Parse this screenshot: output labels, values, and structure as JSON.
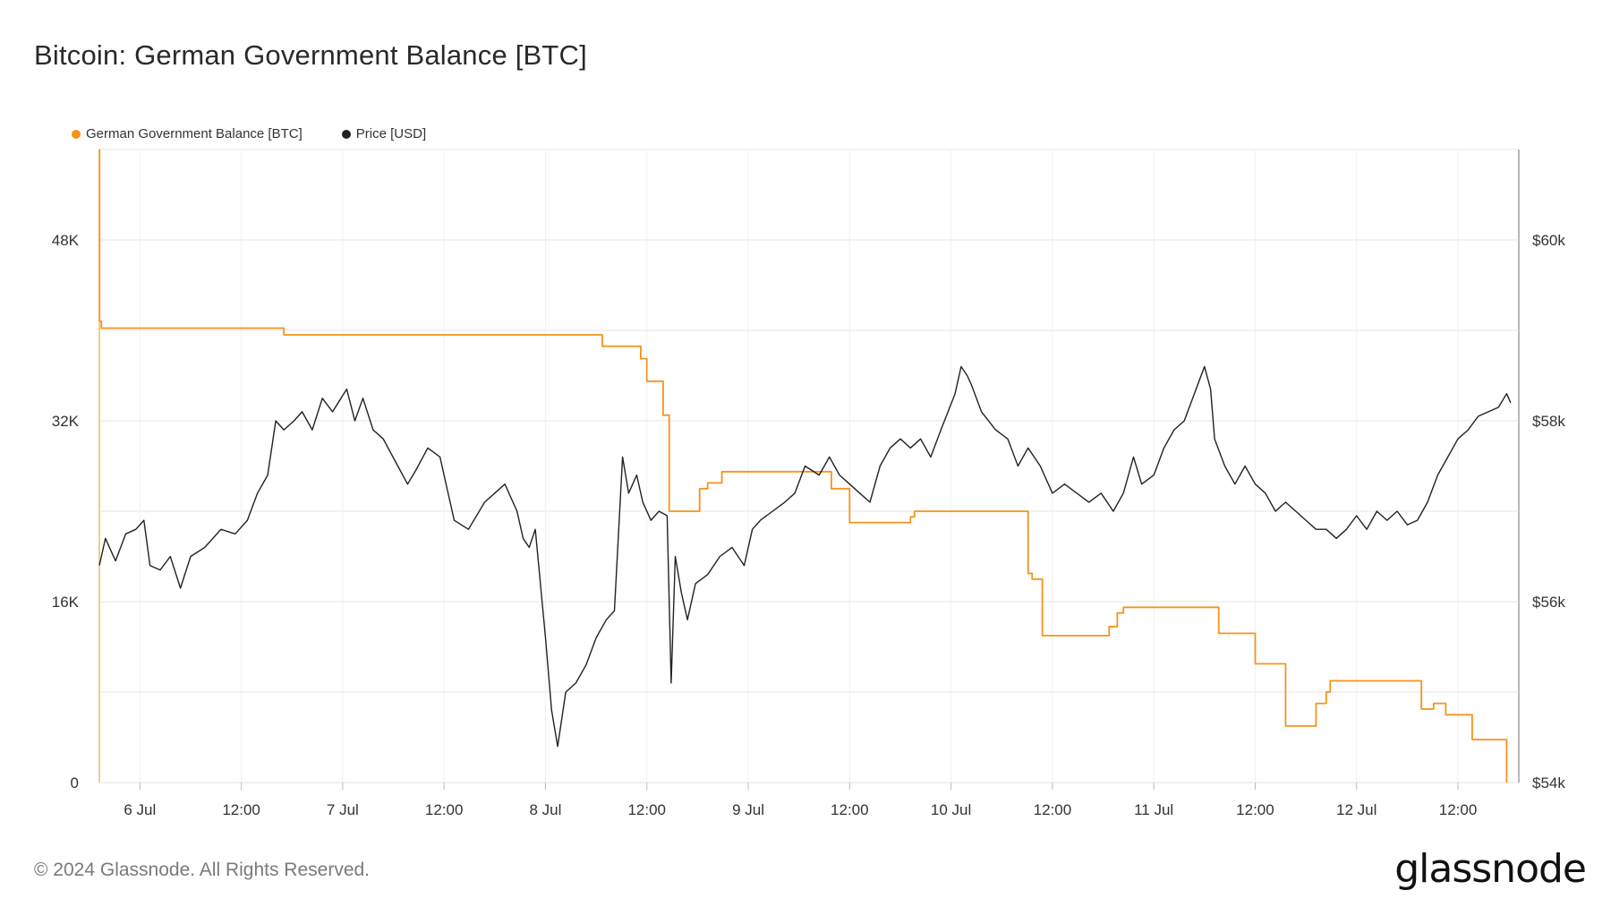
{
  "title": "Bitcoin: German Government Balance [BTC]",
  "footer": "© 2024 Glassnode. All Rights Reserved.",
  "logo_text": "glassnode",
  "legend": [
    {
      "label": "German Government Balance [BTC]",
      "color": "#f7931a"
    },
    {
      "label": "Price [USD]",
      "color": "#222222"
    }
  ],
  "chart_data": {
    "type": "line",
    "x_ticks": [
      "6 Jul",
      "12:00",
      "7 Jul",
      "12:00",
      "8 Jul",
      "12:00",
      "9 Jul",
      "12:00",
      "10 Jul",
      "12:00",
      "11 Jul",
      "12:00",
      "12 Jul",
      "12:00"
    ],
    "x_range_days": [
      5.8,
      12.8
    ],
    "left_axis": {
      "label": "German Government Balance [BTC]",
      "ticks": [
        "0",
        "16K",
        "32K",
        "48K"
      ],
      "tick_values": [
        0,
        16000,
        32000,
        48000
      ],
      "range": [
        0,
        56000
      ]
    },
    "right_axis": {
      "label": "Price [USD]",
      "ticks": [
        "$54k",
        "$56k",
        "$58k",
        "$60k"
      ],
      "tick_values": [
        54000,
        56000,
        58000,
        60000
      ],
      "range": [
        54000,
        61000
      ]
    },
    "grid": true,
    "legend_position": "top-left",
    "series": [
      {
        "name": "German Government Balance [BTC]",
        "axis": "left",
        "color": "#f7931a",
        "step": true,
        "points": [
          [
            5.8,
            56000
          ],
          [
            5.801,
            40800
          ],
          [
            5.81,
            40200
          ],
          [
            6.7,
            40200
          ],
          [
            6.71,
            39600
          ],
          [
            8.27,
            39600
          ],
          [
            8.28,
            38600
          ],
          [
            8.45,
            38600
          ],
          [
            8.47,
            37500
          ],
          [
            8.5,
            35500
          ],
          [
            8.55,
            35500
          ],
          [
            8.58,
            32500
          ],
          [
            8.6,
            32500
          ],
          [
            8.61,
            24000
          ],
          [
            8.74,
            24000
          ],
          [
            8.76,
            26000
          ],
          [
            8.8,
            26500
          ],
          [
            8.85,
            26500
          ],
          [
            8.87,
            27500
          ],
          [
            9.4,
            27500
          ],
          [
            9.41,
            26000
          ],
          [
            9.48,
            26000
          ],
          [
            9.5,
            23000
          ],
          [
            9.75,
            23000
          ],
          [
            9.8,
            23500
          ],
          [
            9.82,
            24000
          ],
          [
            10.37,
            24000
          ],
          [
            10.38,
            18500
          ],
          [
            10.4,
            18000
          ],
          [
            10.45,
            13000
          ],
          [
            10.73,
            13000
          ],
          [
            10.78,
            13800
          ],
          [
            10.82,
            15000
          ],
          [
            10.85,
            15500
          ],
          [
            11.3,
            15500
          ],
          [
            11.32,
            13200
          ],
          [
            11.48,
            13200
          ],
          [
            11.5,
            10500
          ],
          [
            11.63,
            10500
          ],
          [
            11.65,
            5000
          ],
          [
            11.78,
            5000
          ],
          [
            11.8,
            7000
          ],
          [
            11.85,
            8000
          ],
          [
            11.87,
            9000
          ],
          [
            12.3,
            9000
          ],
          [
            12.32,
            6500
          ],
          [
            12.37,
            6500
          ],
          [
            12.38,
            7000
          ],
          [
            12.43,
            7000
          ],
          [
            12.44,
            6000
          ],
          [
            12.55,
            6000
          ],
          [
            12.57,
            3800
          ],
          [
            12.73,
            3800
          ],
          [
            12.74,
            0
          ]
        ]
      },
      {
        "name": "Price [USD]",
        "axis": "right",
        "color": "#222222",
        "step": false,
        "points": [
          [
            5.8,
            56400
          ],
          [
            5.83,
            56700
          ],
          [
            5.88,
            56450
          ],
          [
            5.93,
            56750
          ],
          [
            5.98,
            56800
          ],
          [
            6.02,
            56900
          ],
          [
            6.05,
            56400
          ],
          [
            6.1,
            56350
          ],
          [
            6.15,
            56500
          ],
          [
            6.2,
            56150
          ],
          [
            6.25,
            56500
          ],
          [
            6.32,
            56600
          ],
          [
            6.4,
            56800
          ],
          [
            6.47,
            56750
          ],
          [
            6.53,
            56900
          ],
          [
            6.58,
            57200
          ],
          [
            6.63,
            57400
          ],
          [
            6.67,
            58000
          ],
          [
            6.71,
            57900
          ],
          [
            6.76,
            58000
          ],
          [
            6.8,
            58100
          ],
          [
            6.85,
            57900
          ],
          [
            6.9,
            58250
          ],
          [
            6.95,
            58100
          ],
          [
            7.02,
            58350
          ],
          [
            7.06,
            58000
          ],
          [
            7.1,
            58250
          ],
          [
            7.15,
            57900
          ],
          [
            7.2,
            57800
          ],
          [
            7.26,
            57550
          ],
          [
            7.32,
            57300
          ],
          [
            7.36,
            57450
          ],
          [
            7.42,
            57700
          ],
          [
            7.48,
            57600
          ],
          [
            7.55,
            56900
          ],
          [
            7.62,
            56800
          ],
          [
            7.7,
            57100
          ],
          [
            7.75,
            57200
          ],
          [
            7.8,
            57300
          ],
          [
            7.86,
            57000
          ],
          [
            7.89,
            56700
          ],
          [
            7.92,
            56600
          ],
          [
            7.95,
            56800
          ],
          [
            8.0,
            55600
          ],
          [
            8.03,
            54800
          ],
          [
            8.06,
            54400
          ],
          [
            8.1,
            55000
          ],
          [
            8.15,
            55100
          ],
          [
            8.2,
            55300
          ],
          [
            8.25,
            55600
          ],
          [
            8.3,
            55800
          ],
          [
            8.34,
            55900
          ],
          [
            8.38,
            57600
          ],
          [
            8.41,
            57200
          ],
          [
            8.45,
            57400
          ],
          [
            8.48,
            57100
          ],
          [
            8.52,
            56900
          ],
          [
            8.56,
            57000
          ],
          [
            8.6,
            56950
          ],
          [
            8.62,
            55100
          ],
          [
            8.64,
            56500
          ],
          [
            8.67,
            56100
          ],
          [
            8.7,
            55800
          ],
          [
            8.74,
            56200
          ],
          [
            8.8,
            56300
          ],
          [
            8.86,
            56500
          ],
          [
            8.92,
            56600
          ],
          [
            8.98,
            56400
          ],
          [
            9.02,
            56800
          ],
          [
            9.06,
            56900
          ],
          [
            9.12,
            57000
          ],
          [
            9.18,
            57100
          ],
          [
            9.23,
            57200
          ],
          [
            9.28,
            57500
          ],
          [
            9.35,
            57400
          ],
          [
            9.4,
            57600
          ],
          [
            9.45,
            57400
          ],
          [
            9.5,
            57300
          ],
          [
            9.55,
            57200
          ],
          [
            9.6,
            57100
          ],
          [
            9.65,
            57500
          ],
          [
            9.7,
            57700
          ],
          [
            9.75,
            57800
          ],
          [
            9.8,
            57700
          ],
          [
            9.85,
            57800
          ],
          [
            9.9,
            57600
          ],
          [
            9.95,
            57900
          ],
          [
            10.02,
            58300
          ],
          [
            10.05,
            58600
          ],
          [
            10.08,
            58500
          ],
          [
            10.1,
            58400
          ],
          [
            10.15,
            58100
          ],
          [
            10.22,
            57900
          ],
          [
            10.28,
            57800
          ],
          [
            10.33,
            57500
          ],
          [
            10.38,
            57700
          ],
          [
            10.44,
            57500
          ],
          [
            10.5,
            57200
          ],
          [
            10.56,
            57300
          ],
          [
            10.62,
            57200
          ],
          [
            10.68,
            57100
          ],
          [
            10.74,
            57200
          ],
          [
            10.8,
            57000
          ],
          [
            10.85,
            57200
          ],
          [
            10.9,
            57600
          ],
          [
            10.94,
            57300
          ],
          [
            11.0,
            57400
          ],
          [
            11.05,
            57700
          ],
          [
            11.1,
            57900
          ],
          [
            11.15,
            58000
          ],
          [
            11.2,
            58300
          ],
          [
            11.25,
            58600
          ],
          [
            11.28,
            58350
          ],
          [
            11.3,
            57800
          ],
          [
            11.35,
            57500
          ],
          [
            11.4,
            57300
          ],
          [
            11.45,
            57500
          ],
          [
            11.5,
            57300
          ],
          [
            11.55,
            57200
          ],
          [
            11.6,
            57000
          ],
          [
            11.65,
            57100
          ],
          [
            11.7,
            57000
          ],
          [
            11.75,
            56900
          ],
          [
            11.8,
            56800
          ],
          [
            11.85,
            56800
          ],
          [
            11.9,
            56700
          ],
          [
            11.95,
            56800
          ],
          [
            12.0,
            56950
          ],
          [
            12.05,
            56800
          ],
          [
            12.1,
            57000
          ],
          [
            12.15,
            56900
          ],
          [
            12.2,
            57000
          ],
          [
            12.25,
            56850
          ],
          [
            12.3,
            56900
          ],
          [
            12.35,
            57100
          ],
          [
            12.4,
            57400
          ],
          [
            12.45,
            57600
          ],
          [
            12.5,
            57800
          ],
          [
            12.55,
            57900
          ],
          [
            12.6,
            58050
          ],
          [
            12.65,
            58100
          ],
          [
            12.7,
            58150
          ],
          [
            12.74,
            58300
          ],
          [
            12.76,
            58200
          ]
        ]
      }
    ]
  }
}
